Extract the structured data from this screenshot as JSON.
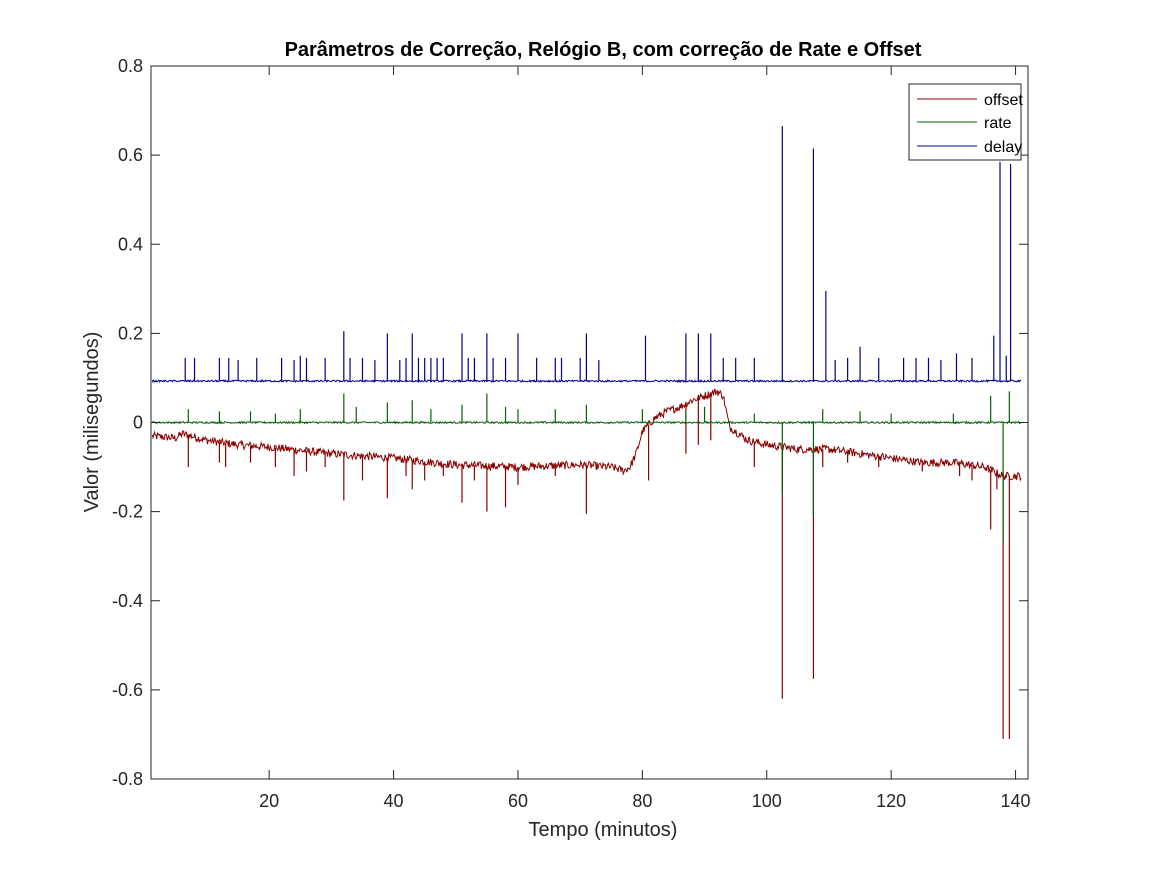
{
  "chart_data": {
    "type": "line",
    "title": "Parâmetros de Correção, Relógio B, com correção de Rate e Offset",
    "xlabel": "Tempo (minutos)",
    "ylabel": "Valor (milisegundos)",
    "xlim": [
      1,
      142
    ],
    "ylim": [
      -0.8,
      0.8
    ],
    "xticks": [
      20,
      40,
      60,
      80,
      100,
      120,
      140
    ],
    "xtick_labels": [
      "20",
      "40",
      "60",
      "80",
      "100",
      "120",
      "140"
    ],
    "yticks": [
      -0.8,
      -0.6,
      -0.4,
      -0.2,
      0,
      0.2,
      0.4,
      0.6,
      0.8
    ],
    "ytick_labels": [
      "-0.8",
      "-0.6",
      "-0.4",
      "-0.2",
      "0",
      "0.2",
      "0.4",
      "0.6",
      "0.8"
    ],
    "grid": false,
    "legend_position": "top-right",
    "colors": {
      "offset": "#8b0000",
      "rate": "#006400",
      "delay": "#00008b"
    },
    "series": [
      {
        "name": "offset",
        "x": [
          1,
          5,
          6,
          10,
          15,
          20,
          30,
          40,
          50,
          60,
          70,
          75,
          77,
          78,
          79,
          80,
          81,
          82,
          84,
          86,
          88,
          90,
          92,
          93,
          94,
          95,
          97,
          100,
          105,
          110,
          115,
          120,
          125,
          130,
          135,
          138,
          141
        ],
        "values": [
          -0.03,
          -0.035,
          -0.025,
          -0.04,
          -0.05,
          -0.055,
          -0.07,
          -0.08,
          -0.095,
          -0.1,
          -0.095,
          -0.1,
          -0.108,
          -0.1,
          -0.07,
          -0.02,
          -0.005,
          0.01,
          0.025,
          0.035,
          0.05,
          0.06,
          0.07,
          0.06,
          -0.01,
          -0.02,
          -0.04,
          -0.05,
          -0.06,
          -0.06,
          -0.07,
          -0.08,
          -0.09,
          -0.09,
          -0.1,
          -0.12,
          -0.12
        ],
        "spikes": [
          {
            "x": 7,
            "y": -0.1
          },
          {
            "x": 12,
            "y": -0.09
          },
          {
            "x": 13,
            "y": -0.1
          },
          {
            "x": 17,
            "y": -0.09
          },
          {
            "x": 21,
            "y": -0.1
          },
          {
            "x": 24,
            "y": -0.12
          },
          {
            "x": 26,
            "y": -0.11
          },
          {
            "x": 29,
            "y": -0.1
          },
          {
            "x": 32,
            "y": -0.175
          },
          {
            "x": 35,
            "y": -0.13
          },
          {
            "x": 39,
            "y": -0.17
          },
          {
            "x": 42,
            "y": -0.12
          },
          {
            "x": 43,
            "y": -0.15
          },
          {
            "x": 45,
            "y": -0.13
          },
          {
            "x": 48,
            "y": -0.12
          },
          {
            "x": 51,
            "y": -0.18
          },
          {
            "x": 53,
            "y": -0.13
          },
          {
            "x": 55,
            "y": -0.2
          },
          {
            "x": 58,
            "y": -0.19
          },
          {
            "x": 60,
            "y": -0.14
          },
          {
            "x": 66,
            "y": -0.12
          },
          {
            "x": 71,
            "y": -0.205
          },
          {
            "x": 81,
            "y": -0.13
          },
          {
            "x": 87,
            "y": -0.07
          },
          {
            "x": 89,
            "y": -0.05
          },
          {
            "x": 91,
            "y": -0.04
          },
          {
            "x": 98,
            "y": -0.1
          },
          {
            "x": 102.5,
            "y": -0.62
          },
          {
            "x": 107.5,
            "y": -0.575
          },
          {
            "x": 109,
            "y": -0.1
          },
          {
            "x": 113,
            "y": -0.09
          },
          {
            "x": 118,
            "y": -0.1
          },
          {
            "x": 125,
            "y": -0.11
          },
          {
            "x": 131,
            "y": -0.12
          },
          {
            "x": 133,
            "y": -0.13
          },
          {
            "x": 136,
            "y": -0.24
          },
          {
            "x": 137,
            "y": -0.15
          },
          {
            "x": 138,
            "y": -0.71
          },
          {
            "x": 139,
            "y": -0.71
          }
        ]
      },
      {
        "name": "rate",
        "x": [
          1,
          141
        ],
        "values": [
          0,
          0
        ],
        "spikes": [
          {
            "x": 7,
            "y": 0.03
          },
          {
            "x": 12,
            "y": 0.025
          },
          {
            "x": 17,
            "y": 0.025
          },
          {
            "x": 21,
            "y": 0.02
          },
          {
            "x": 25,
            "y": 0.03
          },
          {
            "x": 32,
            "y": 0.065
          },
          {
            "x": 34,
            "y": 0.035
          },
          {
            "x": 39,
            "y": 0.045
          },
          {
            "x": 43,
            "y": 0.05
          },
          {
            "x": 46,
            "y": 0.03
          },
          {
            "x": 51,
            "y": 0.04
          },
          {
            "x": 55,
            "y": 0.065
          },
          {
            "x": 58,
            "y": 0.035
          },
          {
            "x": 60,
            "y": 0.03
          },
          {
            "x": 66,
            "y": 0.03
          },
          {
            "x": 71,
            "y": 0.04
          },
          {
            "x": 80,
            "y": 0.03
          },
          {
            "x": 87,
            "y": 0.025
          },
          {
            "x": 90,
            "y": 0.035
          },
          {
            "x": 98,
            "y": 0.02
          },
          {
            "x": 102.5,
            "y": -0.16
          },
          {
            "x": 107.5,
            "y": -0.21
          },
          {
            "x": 109,
            "y": 0.03
          },
          {
            "x": 115,
            "y": 0.025
          },
          {
            "x": 120,
            "y": 0.02
          },
          {
            "x": 130,
            "y": 0.02
          },
          {
            "x": 136,
            "y": 0.06
          },
          {
            "x": 138,
            "y": -0.27
          },
          {
            "x": 139,
            "y": 0.07
          }
        ]
      },
      {
        "name": "delay",
        "x": [
          1,
          141
        ],
        "values": [
          0.093,
          0.093
        ],
        "spikes": [
          {
            "x": 6.5,
            "y": 0.145
          },
          {
            "x": 8,
            "y": 0.145
          },
          {
            "x": 12,
            "y": 0.145
          },
          {
            "x": 13.5,
            "y": 0.145
          },
          {
            "x": 15,
            "y": 0.14
          },
          {
            "x": 18,
            "y": 0.145
          },
          {
            "x": 22,
            "y": 0.145
          },
          {
            "x": 24,
            "y": 0.14
          },
          {
            "x": 25,
            "y": 0.15
          },
          {
            "x": 26,
            "y": 0.145
          },
          {
            "x": 29,
            "y": 0.145
          },
          {
            "x": 32,
            "y": 0.205
          },
          {
            "x": 33,
            "y": 0.145
          },
          {
            "x": 35,
            "y": 0.145
          },
          {
            "x": 37,
            "y": 0.14
          },
          {
            "x": 39,
            "y": 0.2
          },
          {
            "x": 41,
            "y": 0.14
          },
          {
            "x": 42,
            "y": 0.145
          },
          {
            "x": 43,
            "y": 0.2
          },
          {
            "x": 44,
            "y": 0.145
          },
          {
            "x": 45,
            "y": 0.145
          },
          {
            "x": 46,
            "y": 0.145
          },
          {
            "x": 47,
            "y": 0.145
          },
          {
            "x": 48,
            "y": 0.145
          },
          {
            "x": 51,
            "y": 0.2
          },
          {
            "x": 52,
            "y": 0.145
          },
          {
            "x": 53,
            "y": 0.145
          },
          {
            "x": 55,
            "y": 0.2
          },
          {
            "x": 56,
            "y": 0.145
          },
          {
            "x": 58,
            "y": 0.145
          },
          {
            "x": 60,
            "y": 0.2
          },
          {
            "x": 63,
            "y": 0.145
          },
          {
            "x": 66,
            "y": 0.145
          },
          {
            "x": 67,
            "y": 0.145
          },
          {
            "x": 70,
            "y": 0.145
          },
          {
            "x": 71,
            "y": 0.2
          },
          {
            "x": 73,
            "y": 0.14
          },
          {
            "x": 80.5,
            "y": 0.195
          },
          {
            "x": 87,
            "y": 0.2
          },
          {
            "x": 89,
            "y": 0.2
          },
          {
            "x": 91,
            "y": 0.2
          },
          {
            "x": 93,
            "y": 0.145
          },
          {
            "x": 95,
            "y": 0.145
          },
          {
            "x": 98,
            "y": 0.145
          },
          {
            "x": 102.5,
            "y": 0.665
          },
          {
            "x": 107.5,
            "y": 0.615
          },
          {
            "x": 109.5,
            "y": 0.295
          },
          {
            "x": 111,
            "y": 0.14
          },
          {
            "x": 113,
            "y": 0.145
          },
          {
            "x": 115,
            "y": 0.17
          },
          {
            "x": 118,
            "y": 0.145
          },
          {
            "x": 122,
            "y": 0.145
          },
          {
            "x": 124,
            "y": 0.145
          },
          {
            "x": 126,
            "y": 0.145
          },
          {
            "x": 128,
            "y": 0.14
          },
          {
            "x": 130.5,
            "y": 0.155
          },
          {
            "x": 133,
            "y": 0.145
          },
          {
            "x": 136.5,
            "y": 0.195
          },
          {
            "x": 137.5,
            "y": 0.585
          },
          {
            "x": 138.5,
            "y": 0.15
          },
          {
            "x": 139.2,
            "y": 0.58
          }
        ]
      }
    ]
  }
}
